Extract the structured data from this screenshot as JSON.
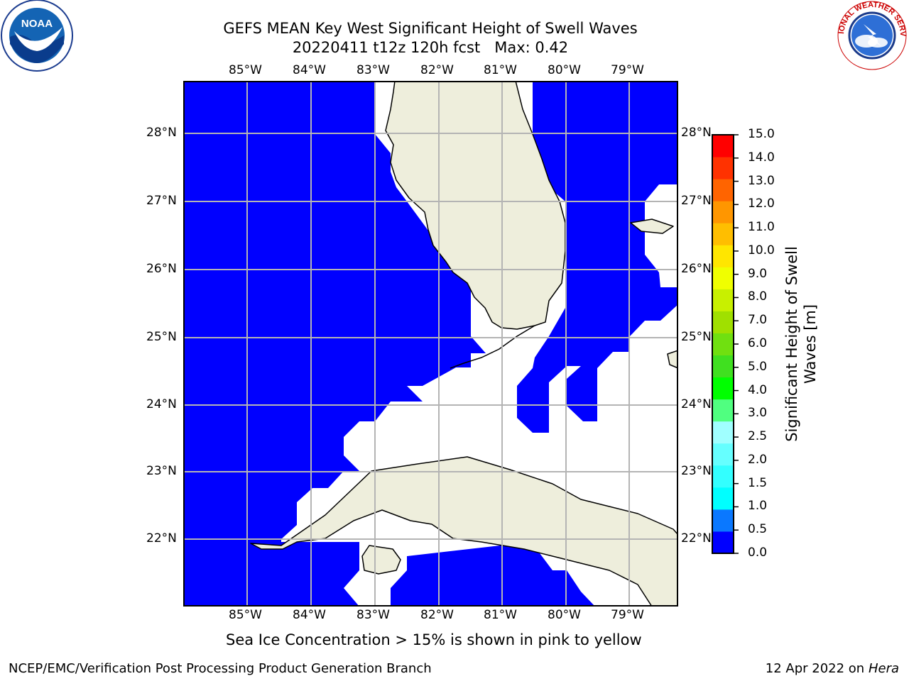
{
  "title": {
    "line1": "GEFS MEAN Key West Significant Height of Swell Waves",
    "line2": "20220411 t12z 120h fcst   Max: 0.42"
  },
  "map": {
    "lon_labels": [
      "85°W",
      "84°W",
      "83°W",
      "82°W",
      "81°W",
      "80°W",
      "79°W"
    ],
    "lat_labels": [
      "28°N",
      "27°N",
      "26°N",
      "25°N",
      "24°N",
      "23°N",
      "22°N"
    ],
    "ocean_color": "#0000ff",
    "land_color": "#eeeedc",
    "no_data_color": "#ffffff"
  },
  "colorbar": {
    "label_line1": "Significant Height of Swell",
    "label_line2": "Waves [m]",
    "ticks": [
      "0.0",
      "0.5",
      "1.0",
      "1.5",
      "2.0",
      "2.5",
      "3.0",
      "4.0",
      "5.0",
      "6.0",
      "7.0",
      "8.0",
      "9.0",
      "10.0",
      "11.0",
      "12.0",
      "13.0",
      "14.0",
      "15.0"
    ],
    "colors": [
      "#0000ff",
      "#0a78ff",
      "#00ffff",
      "#33ffff",
      "#66ffff",
      "#a0ffff",
      "#50ff80",
      "#00ff00",
      "#40e020",
      "#70e010",
      "#a0e000",
      "#c8f000",
      "#f0ff00",
      "#ffe600",
      "#ffbe00",
      "#ff9600",
      "#ff6400",
      "#ff3200",
      "#ff0000"
    ]
  },
  "note": "Sea Ice Concentration > 15% is shown in pink to yellow",
  "footer": {
    "left": "NCEP/EMC/Verification Post Processing Product Generation Branch",
    "right_text": "12 Apr 2022 on ",
    "right_host": "Hera"
  },
  "logos": {
    "noaa_text": "NOAA",
    "nws_text": "NATIONAL WEATHER SERVICE"
  }
}
